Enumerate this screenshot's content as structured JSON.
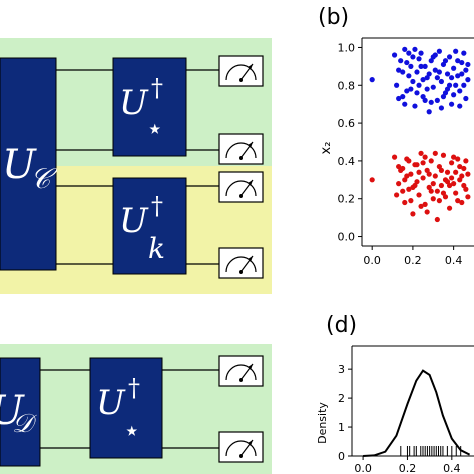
{
  "colors": {
    "gate_fill": "#0d2a7a",
    "green_band": "#cdf0c6",
    "yellow_band": "#f2f3a7",
    "class_a": "#1010dd",
    "class_b": "#dd1010",
    "wire": "#000000"
  },
  "circuit_top": {
    "encoding_gate": {
      "base": "U",
      "subscript": "𝒞"
    },
    "gate_star": {
      "base": "U",
      "superscript": "†",
      "subscript": "⋆"
    },
    "gate_k": {
      "base": "U",
      "superscript": "†",
      "subscript": "k"
    },
    "meters": [
      "meter-icon",
      "meter-icon",
      "meter-icon",
      "meter-icon"
    ]
  },
  "circuit_bottom": {
    "encoding_gate": {
      "base": "U",
      "subscript": "𝒟"
    },
    "gate_star": {
      "base": "U",
      "superscript": "†",
      "subscript": "⋆"
    },
    "meters": [
      "meter-icon",
      "meter-icon"
    ]
  },
  "panel_b": {
    "label": "(b)"
  },
  "panel_d": {
    "label": "(d)"
  },
  "chart_data": [
    {
      "type": "scatter",
      "ylabel": "x₂",
      "xlim": [
        -0.05,
        0.5
      ],
      "ylim": [
        -0.05,
        1.05
      ],
      "x_ticks": [
        "0.0",
        "0.2",
        "0.4"
      ],
      "x_tick_values": [
        0.0,
        0.2,
        0.4
      ],
      "y_ticks": [
        "0.0",
        "0.2",
        "0.4",
        "0.6",
        "0.8",
        "1.0"
      ],
      "y_tick_values": [
        0.0,
        0.2,
        0.4,
        0.6,
        0.8,
        1.0
      ],
      "series": [
        {
          "color": "#1010dd",
          "points": [
            [
              0.0,
              0.83
            ],
            [
              0.11,
              0.96
            ],
            [
              0.13,
              0.88
            ],
            [
              0.15,
              0.74
            ],
            [
              0.16,
              0.99
            ],
            [
              0.17,
              0.92
            ],
            [
              0.18,
              0.85
            ],
            [
              0.19,
              0.78
            ],
            [
              0.2,
              0.95
            ],
            [
              0.21,
              0.69
            ],
            [
              0.22,
              0.87
            ],
            [
              0.23,
              0.8
            ],
            [
              0.24,
              0.97
            ],
            [
              0.25,
              0.74
            ],
            [
              0.26,
              0.9
            ],
            [
              0.27,
              0.84
            ],
            [
              0.28,
              0.66
            ],
            [
              0.29,
              0.93
            ],
            [
              0.3,
              0.79
            ],
            [
              0.31,
              0.88
            ],
            [
              0.32,
              0.72
            ],
            [
              0.33,
              0.98
            ],
            [
              0.34,
              0.82
            ],
            [
              0.35,
              0.91
            ],
            [
              0.36,
              0.76
            ],
            [
              0.37,
              0.86
            ],
            [
              0.38,
              0.95
            ],
            [
              0.39,
              0.7
            ],
            [
              0.4,
              0.89
            ],
            [
              0.41,
              0.8
            ],
            [
              0.42,
              0.93
            ],
            [
              0.43,
              0.77
            ],
            [
              0.44,
              0.86
            ],
            [
              0.45,
              0.97
            ],
            [
              0.46,
              0.73
            ],
            [
              0.47,
              0.83
            ],
            [
              0.12,
              0.8
            ],
            [
              0.14,
              0.93
            ],
            [
              0.16,
              0.7
            ],
            [
              0.18,
              0.97
            ],
            [
              0.2,
              0.82
            ],
            [
              0.22,
              0.76
            ],
            [
              0.24,
              0.9
            ],
            [
              0.26,
              0.72
            ],
            [
              0.28,
              0.86
            ],
            [
              0.3,
              0.95
            ],
            [
              0.32,
              0.84
            ],
            [
              0.34,
              0.68
            ],
            [
              0.36,
              0.93
            ],
            [
              0.38,
              0.8
            ],
            [
              0.4,
              0.75
            ],
            [
              0.42,
              0.85
            ],
            [
              0.44,
              0.92
            ],
            [
              0.46,
              0.88
            ],
            [
              0.15,
              0.87
            ],
            [
              0.19,
              0.9
            ],
            [
              0.23,
              0.94
            ],
            [
              0.27,
              0.78
            ],
            [
              0.31,
              0.96
            ],
            [
              0.35,
              0.74
            ],
            [
              0.39,
              0.84
            ],
            [
              0.43,
              0.69
            ],
            [
              0.47,
              0.91
            ],
            [
              0.17,
              0.77
            ],
            [
              0.21,
              0.99
            ],
            [
              0.25,
              0.83
            ],
            [
              0.29,
              0.71
            ],
            [
              0.33,
              0.87
            ],
            [
              0.37,
              0.78
            ],
            [
              0.41,
              0.98
            ],
            [
              0.45,
              0.8
            ],
            [
              0.13,
              0.73
            ]
          ]
        },
        {
          "color": "#dd1010",
          "points": [
            [
              0.0,
              0.3
            ],
            [
              0.11,
              0.42
            ],
            [
              0.13,
              0.28
            ],
            [
              0.15,
              0.36
            ],
            [
              0.16,
              0.18
            ],
            [
              0.17,
              0.41
            ],
            [
              0.18,
              0.25
            ],
            [
              0.19,
              0.33
            ],
            [
              0.2,
              0.12
            ],
            [
              0.21,
              0.38
            ],
            [
              0.22,
              0.29
            ],
            [
              0.23,
              0.22
            ],
            [
              0.24,
              0.44
            ],
            [
              0.25,
              0.31
            ],
            [
              0.26,
              0.17
            ],
            [
              0.27,
              0.35
            ],
            [
              0.28,
              0.26
            ],
            [
              0.29,
              0.4
            ],
            [
              0.3,
              0.2
            ],
            [
              0.31,
              0.32
            ],
            [
              0.32,
              0.09
            ],
            [
              0.33,
              0.37
            ],
            [
              0.34,
              0.27
            ],
            [
              0.35,
              0.43
            ],
            [
              0.36,
              0.21
            ],
            [
              0.37,
              0.34
            ],
            [
              0.38,
              0.15
            ],
            [
              0.39,
              0.39
            ],
            [
              0.4,
              0.28
            ],
            [
              0.41,
              0.23
            ],
            [
              0.42,
              0.41
            ],
            [
              0.43,
              0.3
            ],
            [
              0.44,
              0.18
            ],
            [
              0.45,
              0.36
            ],
            [
              0.46,
              0.25
            ],
            [
              0.47,
              0.33
            ],
            [
              0.12,
              0.22
            ],
            [
              0.14,
              0.35
            ],
            [
              0.16,
              0.3
            ],
            [
              0.18,
              0.4
            ],
            [
              0.2,
              0.26
            ],
            [
              0.22,
              0.38
            ],
            [
              0.24,
              0.16
            ],
            [
              0.26,
              0.42
            ],
            [
              0.28,
              0.33
            ],
            [
              0.3,
              0.28
            ],
            [
              0.32,
              0.24
            ],
            [
              0.34,
              0.35
            ],
            [
              0.36,
              0.3
            ],
            [
              0.38,
              0.27
            ],
            [
              0.4,
              0.42
            ],
            [
              0.42,
              0.19
            ],
            [
              0.44,
              0.32
            ],
            [
              0.46,
              0.4
            ],
            [
              0.15,
              0.24
            ],
            [
              0.19,
              0.19
            ],
            [
              0.23,
              0.34
            ],
            [
              0.27,
              0.13
            ],
            [
              0.31,
              0.44
            ],
            [
              0.35,
              0.23
            ],
            [
              0.39,
              0.31
            ],
            [
              0.43,
              0.37
            ],
            [
              0.47,
              0.21
            ],
            [
              0.17,
              0.32
            ],
            [
              0.21,
              0.27
            ],
            [
              0.25,
              0.39
            ],
            [
              0.29,
              0.24
            ],
            [
              0.33,
              0.19
            ],
            [
              0.37,
              0.29
            ],
            [
              0.41,
              0.34
            ],
            [
              0.45,
              0.27
            ],
            [
              0.13,
              0.37
            ]
          ]
        }
      ]
    },
    {
      "type": "line",
      "ylabel": "Density",
      "xlim": [
        -0.05,
        0.5
      ],
      "ylim": [
        0,
        3.8
      ],
      "x_ticks": [
        "0.0",
        "0.2",
        "0.4"
      ],
      "x_tick_values": [
        0.0,
        0.2,
        0.4
      ],
      "y_ticks": [
        "0",
        "1",
        "2",
        "3"
      ],
      "y_tick_values": [
        0,
        1,
        2,
        3
      ],
      "series": [
        {
          "x": [
            0.0,
            0.05,
            0.1,
            0.15,
            0.2,
            0.24,
            0.27,
            0.3,
            0.33,
            0.36,
            0.4,
            0.44,
            0.48
          ],
          "values": [
            0.0,
            0.02,
            0.15,
            0.7,
            1.8,
            2.6,
            2.95,
            2.8,
            2.2,
            1.4,
            0.6,
            0.2,
            0.05
          ]
        }
      ],
      "rug": [
        0.17,
        0.2,
        0.21,
        0.23,
        0.24,
        0.26,
        0.27,
        0.28,
        0.29,
        0.3,
        0.31,
        0.32,
        0.33,
        0.34,
        0.35,
        0.36,
        0.38,
        0.4,
        0.42,
        0.44
      ]
    }
  ]
}
